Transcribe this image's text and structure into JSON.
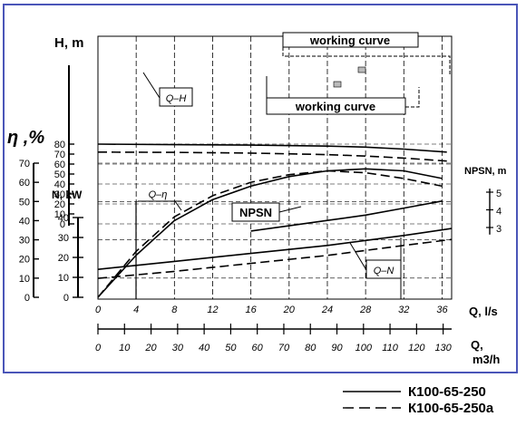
{
  "chart_data": {
    "type": "line",
    "axes": {
      "x_flow_ls": {
        "label": "Q, l/s",
        "range": [
          0,
          37
        ],
        "ticks": [
          0,
          4,
          8,
          12,
          16,
          20,
          24,
          28,
          32,
          36
        ]
      },
      "x_flow_m3h": {
        "label": "Q,",
        "label2": "m3/h",
        "ticks": [
          0,
          10,
          20,
          30,
          40,
          50,
          60,
          70,
          80,
          90,
          100,
          110,
          120,
          130
        ]
      },
      "y_head": {
        "label": "H, m",
        "range": [
          0,
          85
        ],
        "ticks": [
          0,
          10,
          20,
          30,
          40,
          50,
          60,
          70,
          80
        ]
      },
      "y_efficiency": {
        "label": "η ,%",
        "range": [
          0,
          70
        ],
        "ticks": [
          0,
          10,
          20,
          30,
          40,
          50,
          60,
          70
        ],
        "tick_labels": [
          "0",
          "10",
          "20",
          "30",
          "40",
          "50",
          "60",
          "70"
        ]
      },
      "y_power": {
        "label": "N, kW",
        "range": [
          0,
          45
        ],
        "ticks": [
          0,
          10,
          20,
          30,
          40
        ]
      },
      "y_npsh": {
        "label": "NPSN, m",
        "range": [
          2,
          6
        ],
        "ticks": [
          3,
          4,
          5
        ]
      }
    },
    "annotations": {
      "qh": "Q–H",
      "qeta": "Q–η",
      "npsh": "NPSN",
      "qn": "Q–N",
      "wc_top": "working curve",
      "wc_bottom": "working curve"
    },
    "series": [
      {
        "name": "К100-65-250",
        "style": "solid",
        "group": "head",
        "x": [
          0,
          8,
          16,
          24,
          28,
          32,
          36.5
        ],
        "y": [
          80,
          79.5,
          79,
          78,
          77,
          75,
          72
        ]
      },
      {
        "name": "К100-65-250a",
        "style": "dashed",
        "group": "head",
        "x": [
          0,
          8,
          16,
          24,
          28,
          32,
          36.5
        ],
        "y": [
          72,
          71.7,
          71,
          69.5,
          68,
          66,
          63
        ]
      },
      {
        "name": "К100-65-250",
        "style": "solid",
        "group": "efficiency",
        "x": [
          0,
          4,
          8,
          12,
          16,
          20,
          24,
          28,
          32,
          36
        ],
        "y": [
          0,
          22,
          40,
          51,
          58,
          63,
          66,
          67,
          66,
          62
        ]
      },
      {
        "name": "К100-65-250a",
        "style": "dashed",
        "group": "efficiency",
        "x": [
          0,
          4,
          8,
          12,
          16,
          20,
          24,
          28,
          32,
          36
        ],
        "y": [
          0,
          24,
          42,
          53,
          60,
          64,
          66,
          65,
          62,
          58
        ]
      },
      {
        "name": "К100-65-250",
        "style": "solid",
        "group": "power",
        "x": [
          0,
          8,
          16,
          24,
          32,
          37
        ],
        "y": [
          14,
          18,
          22,
          26,
          31,
          34.5
        ]
      },
      {
        "name": "К100-65-250a",
        "style": "dashed",
        "group": "power",
        "x": [
          0,
          8,
          16,
          24,
          32,
          37
        ],
        "y": [
          9.5,
          13,
          17,
          21,
          26,
          29
        ]
      },
      {
        "name": "NPSH",
        "style": "solid",
        "group": "npsh",
        "x": [
          16,
          20,
          24,
          28,
          32,
          36
        ],
        "y": [
          2.8,
          3.1,
          3.4,
          3.7,
          4.1,
          4.5
        ]
      }
    ],
    "legend": {
      "placement": "bottom-right",
      "entries": [
        {
          "style": "solid",
          "label": "К100-65-250"
        },
        {
          "style": "dashed",
          "label": "К100-65-250a"
        }
      ]
    },
    "grid": true,
    "colors": {
      "frame": "#4a55b8",
      "line": "#000000"
    }
  }
}
